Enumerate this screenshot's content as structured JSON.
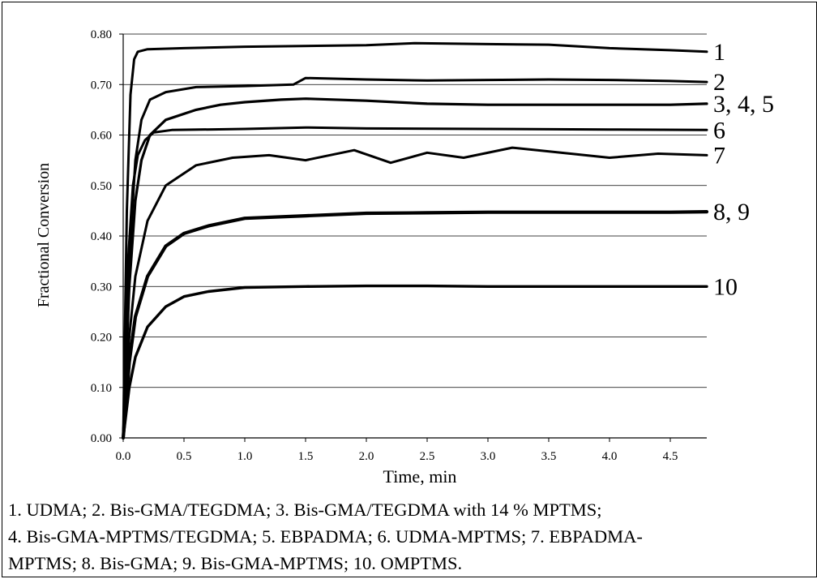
{
  "chart_data": {
    "type": "line",
    "xlabel": "Time, min",
    "ylabel": "Fractional Conversion",
    "xlim": [
      0,
      4.8
    ],
    "ylim": [
      0,
      0.8
    ],
    "x_ticks": [
      "0.0",
      "0.5",
      "1.0",
      "1.5",
      "2.0",
      "2.5",
      "3.0",
      "3.5",
      "4.0",
      "4.5"
    ],
    "y_ticks": [
      "0.00",
      "0.10",
      "0.20",
      "0.30",
      "0.40",
      "0.50",
      "0.60",
      "0.70",
      "0.80"
    ],
    "grid": "horizontal",
    "series": [
      {
        "label": "1",
        "points": [
          [
            0,
            0.0
          ],
          [
            0.03,
            0.45
          ],
          [
            0.06,
            0.68
          ],
          [
            0.09,
            0.75
          ],
          [
            0.12,
            0.765
          ],
          [
            0.2,
            0.77
          ],
          [
            0.5,
            0.772
          ],
          [
            1.0,
            0.775
          ],
          [
            2.0,
            0.778
          ],
          [
            2.4,
            0.782
          ],
          [
            3.0,
            0.78
          ],
          [
            3.5,
            0.779
          ],
          [
            4.0,
            0.772
          ],
          [
            4.5,
            0.768
          ],
          [
            4.8,
            0.765
          ]
        ]
      },
      {
        "label": "2",
        "points": [
          [
            0,
            0.0
          ],
          [
            0.05,
            0.35
          ],
          [
            0.1,
            0.55
          ],
          [
            0.15,
            0.63
          ],
          [
            0.22,
            0.67
          ],
          [
            0.35,
            0.685
          ],
          [
            0.6,
            0.695
          ],
          [
            1.0,
            0.697
          ],
          [
            1.4,
            0.7
          ],
          [
            1.5,
            0.713
          ],
          [
            2.0,
            0.71
          ],
          [
            2.5,
            0.708
          ],
          [
            3.0,
            0.709
          ],
          [
            3.5,
            0.71
          ],
          [
            4.0,
            0.709
          ],
          [
            4.5,
            0.707
          ],
          [
            4.8,
            0.705
          ]
        ]
      },
      {
        "label": "3, 4, 5",
        "points": [
          [
            0,
            0.0
          ],
          [
            0.05,
            0.3
          ],
          [
            0.1,
            0.47
          ],
          [
            0.15,
            0.55
          ],
          [
            0.22,
            0.6
          ],
          [
            0.35,
            0.63
          ],
          [
            0.6,
            0.65
          ],
          [
            0.8,
            0.66
          ],
          [
            1.0,
            0.665
          ],
          [
            1.3,
            0.67
          ],
          [
            1.5,
            0.672
          ],
          [
            2.0,
            0.668
          ],
          [
            2.5,
            0.662
          ],
          [
            3.0,
            0.66
          ],
          [
            3.5,
            0.66
          ],
          [
            4.0,
            0.66
          ],
          [
            4.5,
            0.66
          ],
          [
            4.8,
            0.662
          ]
        ]
      },
      {
        "label": "6",
        "points": [
          [
            0,
            0.0
          ],
          [
            0.04,
            0.35
          ],
          [
            0.08,
            0.5
          ],
          [
            0.12,
            0.56
          ],
          [
            0.18,
            0.59
          ],
          [
            0.25,
            0.605
          ],
          [
            0.4,
            0.61
          ],
          [
            1.0,
            0.612
          ],
          [
            1.5,
            0.615
          ],
          [
            2.0,
            0.613
          ],
          [
            3.0,
            0.612
          ],
          [
            4.0,
            0.611
          ],
          [
            4.8,
            0.61
          ]
        ]
      },
      {
        "label": "7",
        "points": [
          [
            0,
            0.0
          ],
          [
            0.05,
            0.2
          ],
          [
            0.1,
            0.32
          ],
          [
            0.2,
            0.43
          ],
          [
            0.35,
            0.5
          ],
          [
            0.6,
            0.54
          ],
          [
            0.9,
            0.555
          ],
          [
            1.2,
            0.56
          ],
          [
            1.5,
            0.55
          ],
          [
            1.9,
            0.57
          ],
          [
            2.2,
            0.545
          ],
          [
            2.5,
            0.565
          ],
          [
            2.8,
            0.555
          ],
          [
            3.2,
            0.575
          ],
          [
            3.6,
            0.565
          ],
          [
            4.0,
            0.555
          ],
          [
            4.4,
            0.563
          ],
          [
            4.8,
            0.56
          ]
        ]
      },
      {
        "label": "8, 9",
        "points": [
          [
            0,
            0.0
          ],
          [
            0.05,
            0.15
          ],
          [
            0.1,
            0.24
          ],
          [
            0.2,
            0.32
          ],
          [
            0.35,
            0.38
          ],
          [
            0.5,
            0.405
          ],
          [
            0.7,
            0.42
          ],
          [
            1.0,
            0.435
          ],
          [
            1.5,
            0.44
          ],
          [
            2.0,
            0.445
          ],
          [
            2.5,
            0.446
          ],
          [
            3.0,
            0.447
          ],
          [
            3.5,
            0.447
          ],
          [
            4.0,
            0.447
          ],
          [
            4.5,
            0.447
          ],
          [
            4.8,
            0.448
          ]
        ]
      },
      {
        "label": "10",
        "points": [
          [
            0,
            0.0
          ],
          [
            0.05,
            0.1
          ],
          [
            0.1,
            0.16
          ],
          [
            0.2,
            0.22
          ],
          [
            0.35,
            0.26
          ],
          [
            0.5,
            0.28
          ],
          [
            0.7,
            0.29
          ],
          [
            1.0,
            0.298
          ],
          [
            1.5,
            0.3
          ],
          [
            2.0,
            0.301
          ],
          [
            2.5,
            0.301
          ],
          [
            3.0,
            0.3
          ],
          [
            3.5,
            0.3
          ],
          [
            4.0,
            0.3
          ],
          [
            4.5,
            0.3
          ],
          [
            4.8,
            0.3
          ]
        ]
      }
    ]
  },
  "caption": {
    "line1": "1. UDMA; 2. Bis-GMA/TEGDMA; 3. Bis-GMA/TEGDMA with 14 % MPTMS;",
    "line2": "4. Bis-GMA-MPTMS/TEGDMA; 5. EBPADMA; 6. UDMA-MPTMS; 7. EBPADMA-",
    "line3": "MPTMS; 8. Bis-GMA; 9. Bis-GMA-MPTMS; 10. OMPTMS."
  }
}
